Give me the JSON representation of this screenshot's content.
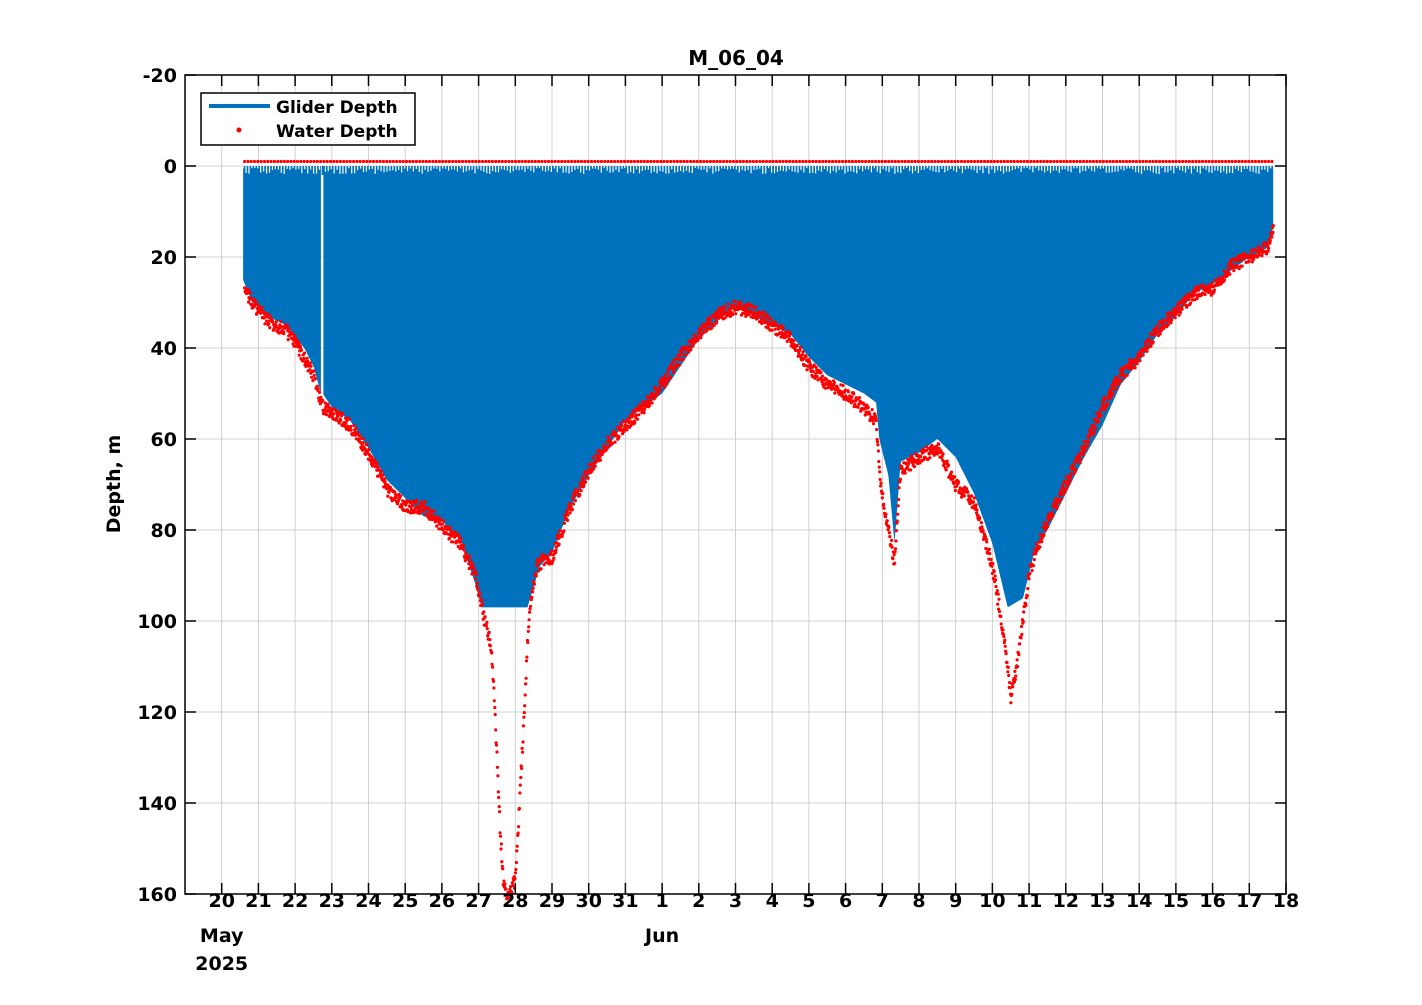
{
  "chart_data": {
    "type": "area",
    "title": "M_06_04",
    "xlabel": "",
    "ylabel": "Depth, m",
    "ylim": [
      -20,
      160
    ],
    "y_reversed": true,
    "y_ticks": [
      -20,
      0,
      20,
      40,
      60,
      80,
      100,
      120,
      140,
      160
    ],
    "x_range": [
      "2025-05-19",
      "2025-06-18"
    ],
    "x_ticks": [
      {
        "date": "2025-05-20",
        "label": "20"
      },
      {
        "date": "2025-05-21",
        "label": "21"
      },
      {
        "date": "2025-05-22",
        "label": "22"
      },
      {
        "date": "2025-05-23",
        "label": "23"
      },
      {
        "date": "2025-05-24",
        "label": "24"
      },
      {
        "date": "2025-05-25",
        "label": "25"
      },
      {
        "date": "2025-05-26",
        "label": "26"
      },
      {
        "date": "2025-05-27",
        "label": "27"
      },
      {
        "date": "2025-05-28",
        "label": "28"
      },
      {
        "date": "2025-05-29",
        "label": "29"
      },
      {
        "date": "2025-05-30",
        "label": "30"
      },
      {
        "date": "2025-05-31",
        "label": "31"
      },
      {
        "date": "2025-06-01",
        "label": "1"
      },
      {
        "date": "2025-06-02",
        "label": "2"
      },
      {
        "date": "2025-06-03",
        "label": "3"
      },
      {
        "date": "2025-06-04",
        "label": "4"
      },
      {
        "date": "2025-06-05",
        "label": "5"
      },
      {
        "date": "2025-06-06",
        "label": "6"
      },
      {
        "date": "2025-06-07",
        "label": "7"
      },
      {
        "date": "2025-06-08",
        "label": "8"
      },
      {
        "date": "2025-06-09",
        "label": "9"
      },
      {
        "date": "2025-06-10",
        "label": "10"
      },
      {
        "date": "2025-06-11",
        "label": "11"
      },
      {
        "date": "2025-06-12",
        "label": "12"
      },
      {
        "date": "2025-06-13",
        "label": "13"
      },
      {
        "date": "2025-06-14",
        "label": "14"
      },
      {
        "date": "2025-06-15",
        "label": "15"
      },
      {
        "date": "2025-06-16",
        "label": "16"
      },
      {
        "date": "2025-06-17",
        "label": "17"
      },
      {
        "date": "2025-06-18",
        "label": "18"
      }
    ],
    "x_secondary_labels": [
      {
        "date": "2025-05-20",
        "lines": [
          "May",
          "2025"
        ]
      },
      {
        "date": "2025-06-01",
        "lines": [
          "Jun"
        ]
      }
    ],
    "grid": true,
    "legend": {
      "position": "top-left",
      "entries": [
        "Glider Depth",
        "Water Depth"
      ]
    },
    "series": [
      {
        "name": "Glider Depth",
        "style": "filled-yo",
        "color": "#0072BD",
        "x": [
          "2025-05-20 14:00",
          "2025-05-20 20:00",
          "2025-05-21 06:00",
          "2025-05-21 18:00",
          "2025-05-22 06:00",
          "2025-05-22 12:00",
          "2025-05-22 17:00",
          "2025-05-22 18:00",
          "2025-05-23 00:00",
          "2025-05-23 12:00",
          "2025-05-24 00:00",
          "2025-05-24 12:00",
          "2025-05-25 00:00",
          "2025-05-25 12:00",
          "2025-05-26 00:00",
          "2025-05-26 12:00",
          "2025-05-26 22:00",
          "2025-05-27 02:00",
          "2025-05-27 12:00",
          "2025-05-28 00:00",
          "2025-05-28 08:00",
          "2025-05-28 16:00",
          "2025-05-29 00:00",
          "2025-05-29 12:00",
          "2025-05-30 00:00",
          "2025-05-30 12:00",
          "2025-05-31 00:00",
          "2025-05-31 12:00",
          "2025-06-01 00:00",
          "2025-06-01 12:00",
          "2025-06-02 00:00",
          "2025-06-02 12:00",
          "2025-06-03 00:00",
          "2025-06-03 12:00",
          "2025-06-04 00:00",
          "2025-06-04 12:00",
          "2025-06-05 00:00",
          "2025-06-05 12:00",
          "2025-06-06 00:00",
          "2025-06-06 12:00",
          "2025-06-06 20:00",
          "2025-06-06 22:00",
          "2025-06-07 04:00",
          "2025-06-07 08:00",
          "2025-06-07 12:00",
          "2025-06-08 00:00",
          "2025-06-08 12:00",
          "2025-06-09 00:00",
          "2025-06-09 12:00",
          "2025-06-10 00:00",
          "2025-06-10 10:00",
          "2025-06-10 20:00",
          "2025-06-11 04:00",
          "2025-06-11 12:00",
          "2025-06-12 00:00",
          "2025-06-12 12:00",
          "2025-06-13 00:00",
          "2025-06-13 12:00",
          "2025-06-14 00:00",
          "2025-06-14 12:00",
          "2025-06-15 00:00",
          "2025-06-15 12:00",
          "2025-06-16 00:00",
          "2025-06-16 12:00",
          "2025-06-17 00:00",
          "2025-06-17 12:00",
          "2025-06-17 16:00"
        ],
        "y_max": [
          25,
          30,
          33,
          35,
          40,
          44,
          50,
          50,
          53,
          56,
          62,
          69,
          73,
          77,
          78,
          82,
          92,
          97,
          97,
          97,
          97,
          88,
          85,
          75,
          68,
          62,
          56,
          53,
          50,
          44,
          38,
          34,
          31,
          33,
          35,
          37,
          42,
          46,
          48,
          50,
          52,
          60,
          68,
          83,
          65,
          63,
          60,
          64,
          72,
          83,
          97,
          95,
          84,
          80,
          72,
          64,
          57,
          48,
          43,
          37,
          33,
          28,
          26,
          23,
          20,
          18,
          13
        ]
      },
      {
        "name": "Water Depth",
        "style": "dots",
        "color": "#FF0000",
        "x": [
          "2025-05-20 15:00",
          "2025-05-20 20:00",
          "2025-05-21 06:00",
          "2025-05-21 18:00",
          "2025-05-22 06:00",
          "2025-05-22 12:00",
          "2025-05-22 18:00",
          "2025-05-23 00:00",
          "2025-05-23 12:00",
          "2025-05-24 00:00",
          "2025-05-24 12:00",
          "2025-05-25 00:00",
          "2025-05-25 12:00",
          "2025-05-26 00:00",
          "2025-05-26 12:00",
          "2025-05-26 22:00",
          "2025-05-27 04:00",
          "2025-05-27 08:00",
          "2025-05-27 10:00",
          "2025-05-27 12:00",
          "2025-05-27 14:00",
          "2025-05-27 16:00",
          "2025-05-27 18:00",
          "2025-05-27 20:00",
          "2025-05-28 00:00",
          "2025-05-28 02:00",
          "2025-05-28 04:00",
          "2025-05-28 06:00",
          "2025-05-28 08:00",
          "2025-05-28 10:00",
          "2025-05-28 14:00",
          "2025-05-28 20:00",
          "2025-05-29 00:00",
          "2025-05-29 12:00",
          "2025-05-30 00:00",
          "2025-05-30 12:00",
          "2025-05-31 00:00",
          "2025-05-31 12:00",
          "2025-06-01 00:00",
          "2025-06-01 12:00",
          "2025-06-02 00:00",
          "2025-06-02 12:00",
          "2025-06-03 00:00",
          "2025-06-03 12:00",
          "2025-06-04 00:00",
          "2025-06-04 12:00",
          "2025-06-05 00:00",
          "2025-06-05 12:00",
          "2025-06-06 00:00",
          "2025-06-06 12:00",
          "2025-06-06 20:00",
          "2025-06-06 23:00",
          "2025-06-07 04:00",
          "2025-06-07 08:00",
          "2025-06-07 12:00",
          "2025-06-08 00:00",
          "2025-06-08 12:00",
          "2025-06-09 00:00",
          "2025-06-09 12:00",
          "2025-06-10 00:00",
          "2025-06-10 06:00",
          "2025-06-10 10:00",
          "2025-06-10 12:00",
          "2025-06-10 16:00",
          "2025-06-10 20:00",
          "2025-06-11 00:00",
          "2025-06-11 04:00",
          "2025-06-11 12:00",
          "2025-06-12 00:00",
          "2025-06-12 12:00",
          "2025-06-13 00:00",
          "2025-06-13 12:00",
          "2025-06-14 00:00",
          "2025-06-14 12:00",
          "2025-06-15 00:00",
          "2025-06-15 12:00",
          "2025-06-16 00:00",
          "2025-06-16 12:00",
          "2025-06-17 00:00",
          "2025-06-17 12:00",
          "2025-06-17 16:00"
        ],
        "y": [
          27,
          30,
          34,
          36,
          42,
          46,
          53,
          54,
          57,
          63,
          71,
          75,
          75,
          79,
          83,
          90,
          100,
          105,
          115,
          130,
          145,
          157,
          160,
          160,
          157,
          145,
          132,
          120,
          105,
          95,
          88,
          86,
          86,
          75,
          67,
          61,
          57,
          53,
          48,
          42,
          37,
          33,
          31,
          32,
          35,
          38,
          44,
          48,
          50,
          53,
          56,
          70,
          80,
          87,
          67,
          64,
          62,
          70,
          74,
          88,
          100,
          110,
          117,
          110,
          100,
          90,
          85,
          78,
          70,
          62,
          53,
          46,
          42,
          36,
          32,
          28,
          27,
          22,
          20,
          18,
          14
        ]
      }
    ]
  }
}
